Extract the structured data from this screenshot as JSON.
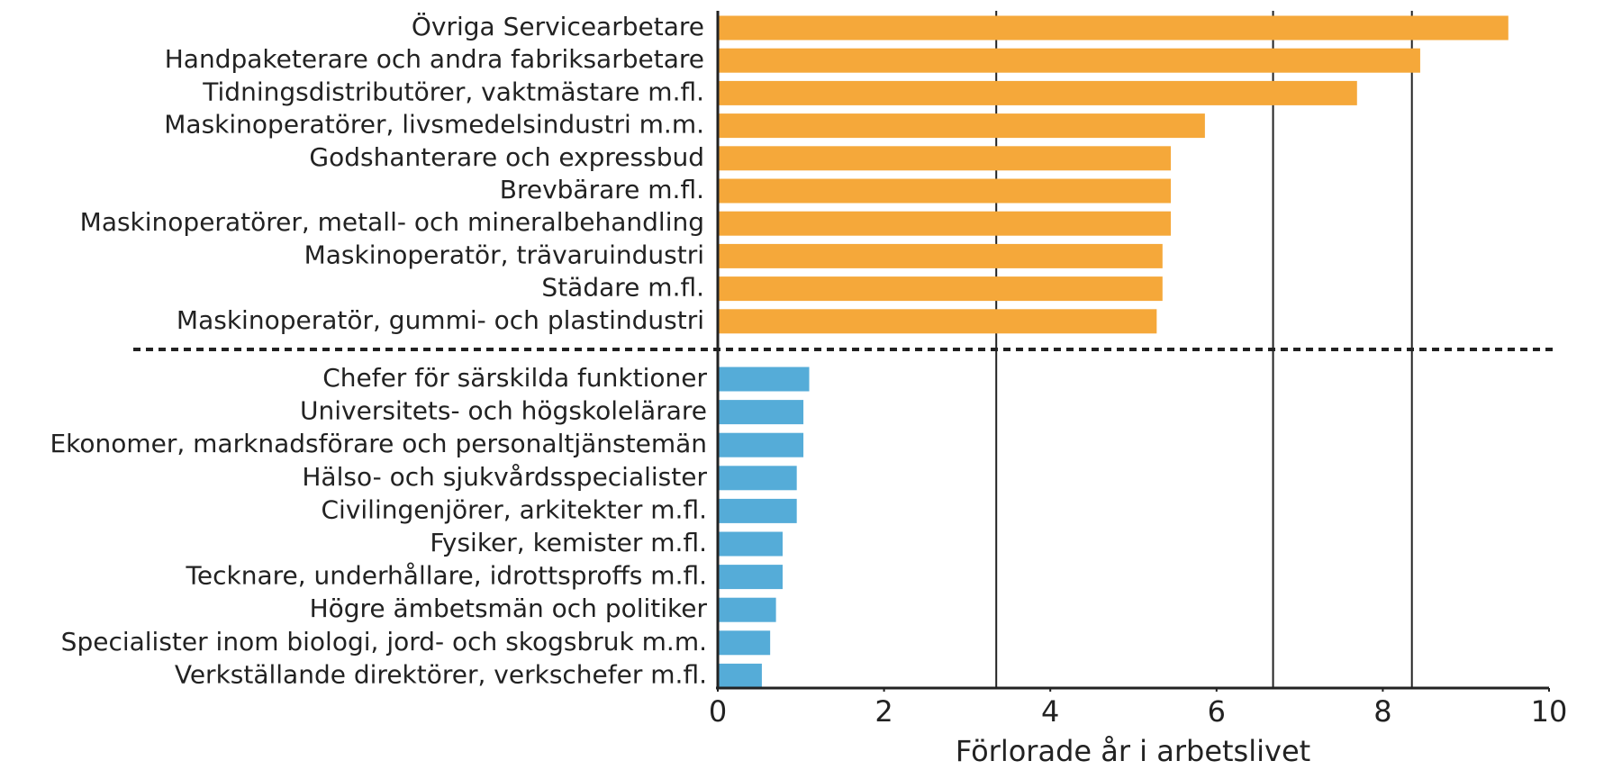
{
  "chart_data": {
    "type": "bar",
    "orientation": "horizontal",
    "xlabel": "Förlorade år i arbetslivet",
    "xlim": [
      0,
      10
    ],
    "xticks": [
      0,
      2,
      4,
      6,
      8,
      10
    ],
    "vlines": [
      3.35,
      6.68,
      8.35
    ],
    "groups": [
      {
        "color": "#f5a83a",
        "categories": [
          "Övriga Servicearbetare",
          "Handpaketerare och andra fabriksarbetare",
          "Tidningsdistributörer, vaktmästare m.fl.",
          "Maskinoperatörer, livsmedelsindustri m.m.",
          "Godshanterare och expressbud",
          "Brevbärare m.fl.",
          "Maskinoperatörer, metall- och mineralbehandling",
          "Maskinoperatör, trävaruindustri",
          "Städare m.fl.",
          "Maskinoperatör, gummi- och plastindustri"
        ],
        "values": [
          9.51,
          8.45,
          7.69,
          5.86,
          5.45,
          5.45,
          5.45,
          5.35,
          5.35,
          5.28
        ]
      },
      {
        "color": "#55acd8",
        "categories": [
          "Chefer för särskilda funktioner",
          "Universitets- och högskolelärare",
          "Ekonomer, marknadsförare och personaltjänstemän",
          "Hälso- och sjukvårdsspecialister",
          "Civilingenjörer, arkitekter m.fl.",
          "Fysiker, kemister m.fl.",
          "Tecknare, underhållare, idrottsproffs m.fl.",
          "Högre ämbetsmän och politiker",
          "Specialister inom biologi, jord- och skogsbruk m.m.",
          "Verkställande direktörer, verkschefer m.fl."
        ],
        "values": [
          1.1,
          1.03,
          1.03,
          0.95,
          0.95,
          0.78,
          0.78,
          0.7,
          0.63,
          0.53
        ]
      }
    ]
  }
}
